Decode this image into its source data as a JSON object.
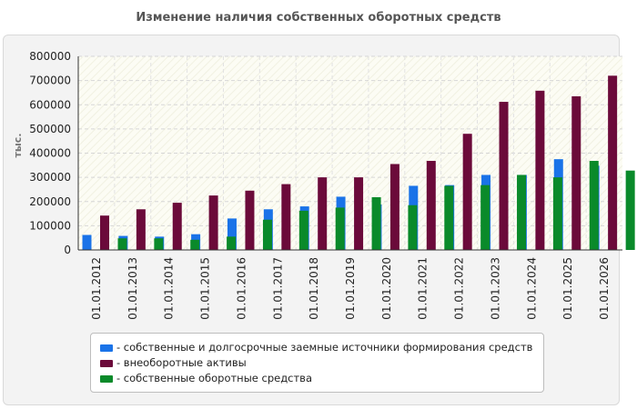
{
  "chart_data": {
    "type": "bar",
    "title": "Изменение наличия собственных оборотных средств",
    "ylabel": "тыс.",
    "ylim": [
      0,
      800000
    ],
    "yticks": [
      0,
      100000,
      200000,
      300000,
      400000,
      500000,
      600000,
      700000,
      800000
    ],
    "grid": true,
    "legend_position": "bottom",
    "categories": [
      "01.01.2012",
      "01.01.2013",
      "01.01.2014",
      "01.01.2015",
      "01.01.2016",
      "01.01.2017",
      "01.01.2018",
      "01.01.2019",
      "01.01.2020",
      "01.01.2021",
      "01.01.2022",
      "01.01.2023",
      "01.01.2024",
      "01.01.2025",
      "01.01.2026"
    ],
    "series": [
      {
        "name": "- собственные и долгосрочные заемные источники формирования средств",
        "color": "#1a73e8",
        "values": [
          62000,
          58000,
          55000,
          65000,
          130000,
          168000,
          180000,
          220000,
          188000,
          265000,
          268000,
          310000,
          310000,
          375000,
          348000
        ]
      },
      {
        "name": "- внеоборотные активы",
        "color": "#6b0a3a",
        "values": [
          142000,
          168000,
          195000,
          225000,
          245000,
          272000,
          300000,
          300000,
          355000,
          368000,
          480000,
          612000,
          658000,
          635000,
          720000
        ]
      },
      {
        "name": "- собственные оборотные средства",
        "color": "#0a8a2a",
        "values": [
          48000,
          48000,
          42000,
          55000,
          125000,
          162000,
          175000,
          218000,
          185000,
          265000,
          268000,
          310000,
          300000,
          368000,
          328000
        ]
      }
    ]
  }
}
